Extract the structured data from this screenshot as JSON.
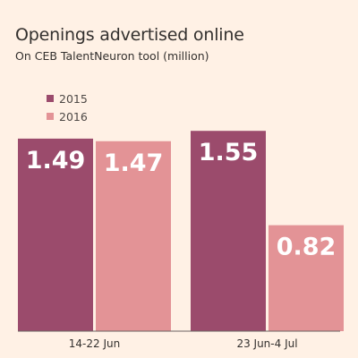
{
  "title": "Openings advertised online",
  "subtitle": "On CEB TalentNeuron tool (million)",
  "colors": {
    "background": "#fff1e5",
    "s2015": "#9b4b6c",
    "s2016": "#e39396",
    "text": "#33302e"
  },
  "chart_data": {
    "type": "bar",
    "categories": [
      "14-22 Jun",
      "23 Jun-4 Jul"
    ],
    "series": [
      {
        "name": "2015",
        "values": [
          1.49,
          1.55
        ],
        "labels": [
          "1.49",
          "1.55"
        ]
      },
      {
        "name": "2016",
        "values": [
          1.47,
          0.82
        ],
        "labels": [
          "1.47",
          "0.82"
        ]
      }
    ],
    "ylim": [
      0,
      1.6
    ],
    "grid": false,
    "legend": "top-left"
  }
}
